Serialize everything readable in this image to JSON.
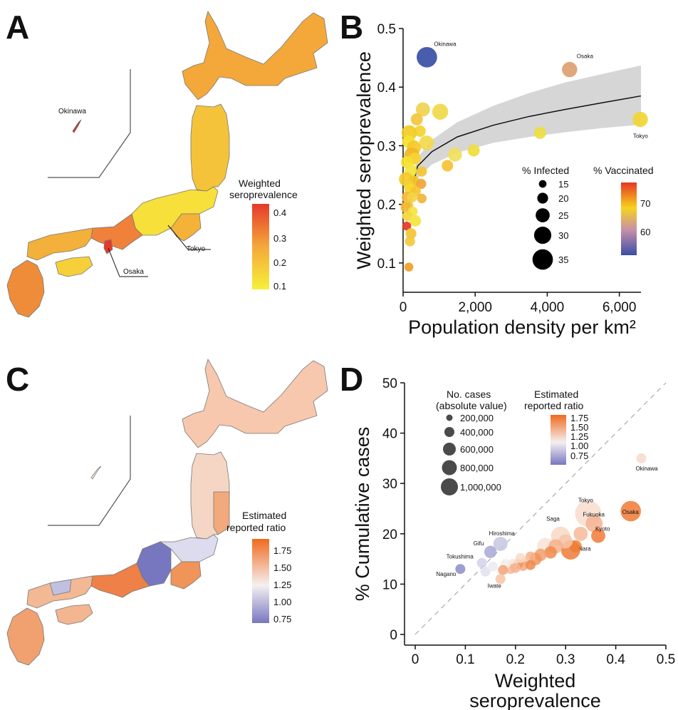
{
  "panels": {
    "a": "A",
    "b": "B",
    "c": "C",
    "d": "D"
  },
  "map_a": {
    "legend_title_1": "Weighted",
    "legend_title_2": "seroprevalence",
    "legend_ticks": [
      "0.4",
      "0.3",
      "0.2",
      "0.1"
    ],
    "labels": {
      "okinawa": "Okinawa",
      "tokyo": "Tokyo",
      "osaka": "Osaka"
    },
    "colors": {
      "low": "#f7f03a",
      "mid": "#f4a83a",
      "high": "#e53a2a"
    }
  },
  "map_c": {
    "legend_title_1": "Estimated",
    "legend_title_2": "reported ratio",
    "legend_ticks": [
      "1.75",
      "1.50",
      "1.25",
      "1.00",
      "0.75"
    ],
    "colors": {
      "low": "#7777c0",
      "mid": "#f5f0f0",
      "high": "#f06a1f"
    }
  },
  "chart_data": [
    {
      "type": "scatter",
      "xlabel": "Population density per km²",
      "ylabel": "Weighted seroprevalence",
      "xlim": [
        0,
        6600
      ],
      "ylim": [
        0.05,
        0.5
      ],
      "x_ticks": [
        "0",
        "2,000",
        "4,000",
        "6,000"
      ],
      "y_ticks": [
        "0.1",
        "0.2",
        "0.3",
        "0.4",
        "0.5"
      ],
      "size_legend": {
        "title": "% Infected",
        "labels": [
          "15",
          "20",
          "25",
          "30",
          "35"
        ]
      },
      "color_legend": {
        "title": "% Vaccinated",
        "labels": [
          "70",
          "60"
        ],
        "colors": [
          "#e63624",
          "#f7d21e",
          "#c890a8",
          "#3a4fa6"
        ]
      },
      "fit": {
        "x": [
          100,
          400,
          800,
          1500,
          2500,
          3500,
          4500,
          5500,
          6600
        ],
        "y": [
          0.185,
          0.265,
          0.29,
          0.315,
          0.335,
          0.35,
          0.362,
          0.373,
          0.385
        ]
      },
      "band": {
        "x": [
          100,
          400,
          800,
          1500,
          2500,
          3500,
          4500,
          5500,
          6600
        ],
        "lower": [
          0.17,
          0.245,
          0.268,
          0.288,
          0.305,
          0.315,
          0.323,
          0.33,
          0.336
        ],
        "upper": [
          0.2,
          0.28,
          0.31,
          0.34,
          0.368,
          0.39,
          0.408,
          0.422,
          0.437
        ]
      },
      "points": [
        {
          "x": 660,
          "y": 0.451,
          "s": 35,
          "c": "#3a4fa6",
          "label": "Okinawa"
        },
        {
          "x": 4620,
          "y": 0.43,
          "s": 27,
          "c": "#dda070",
          "label": "Osaka"
        },
        {
          "x": 6580,
          "y": 0.345,
          "s": 27,
          "c": "#f2d535",
          "label": "Tokyo"
        },
        {
          "x": 3800,
          "y": 0.322,
          "s": 22,
          "c": "#ece040"
        },
        {
          "x": 1030,
          "y": 0.358,
          "s": 28,
          "c": "#f0d94a"
        },
        {
          "x": 1440,
          "y": 0.285,
          "s": 25,
          "c": "#f0e060"
        },
        {
          "x": 1960,
          "y": 0.292,
          "s": 22,
          "c": "#f0dd3e"
        },
        {
          "x": 1230,
          "y": 0.266,
          "s": 21,
          "c": "#f5c232"
        },
        {
          "x": 650,
          "y": 0.305,
          "s": 26,
          "c": "#f3d84c"
        },
        {
          "x": 550,
          "y": 0.362,
          "s": 25,
          "c": "#efd34e"
        },
        {
          "x": 380,
          "y": 0.345,
          "s": 22,
          "c": "#f2c63d"
        },
        {
          "x": 470,
          "y": 0.325,
          "s": 21,
          "c": "#f3d231"
        },
        {
          "x": 170,
          "y": 0.322,
          "s": 27,
          "c": "#f1cc25"
        },
        {
          "x": 150,
          "y": 0.307,
          "s": 23,
          "c": "#f7e12f"
        },
        {
          "x": 300,
          "y": 0.297,
          "s": 25,
          "c": "#f5c92a"
        },
        {
          "x": 240,
          "y": 0.284,
          "s": 27,
          "c": "#f2b726"
        },
        {
          "x": 330,
          "y": 0.278,
          "s": 22,
          "c": "#f7d434"
        },
        {
          "x": 110,
          "y": 0.272,
          "s": 22,
          "c": "#f5df2c"
        },
        {
          "x": 220,
          "y": 0.258,
          "s": 22,
          "c": "#f4e53a"
        },
        {
          "x": 520,
          "y": 0.256,
          "s": 19,
          "c": "#f2c436"
        },
        {
          "x": 80,
          "y": 0.243,
          "s": 25,
          "c": "#f4ca27"
        },
        {
          "x": 290,
          "y": 0.239,
          "s": 22,
          "c": "#f5c424"
        },
        {
          "x": 160,
          "y": 0.232,
          "s": 20,
          "c": "#f3d03a"
        },
        {
          "x": 500,
          "y": 0.235,
          "s": 19,
          "c": "#f0a536"
        },
        {
          "x": 200,
          "y": 0.225,
          "s": 21,
          "c": "#f6d82f"
        },
        {
          "x": 350,
          "y": 0.222,
          "s": 19,
          "c": "#f5c430"
        },
        {
          "x": 120,
          "y": 0.212,
          "s": 21,
          "c": "#f5b834"
        },
        {
          "x": 250,
          "y": 0.212,
          "s": 19,
          "c": "#f5d246"
        },
        {
          "x": 520,
          "y": 0.21,
          "s": 18,
          "c": "#f1b43a"
        },
        {
          "x": 140,
          "y": 0.198,
          "s": 19,
          "c": "#f4c93a"
        },
        {
          "x": 80,
          "y": 0.195,
          "s": 20,
          "c": "#f3b93a"
        },
        {
          "x": 270,
          "y": 0.188,
          "s": 18,
          "c": "#f4e444"
        },
        {
          "x": 120,
          "y": 0.18,
          "s": 19,
          "c": "#f5d73c"
        },
        {
          "x": 340,
          "y": 0.172,
          "s": 21,
          "c": "#f5e43e"
        },
        {
          "x": 100,
          "y": 0.163,
          "s": 17,
          "c": "#e63624"
        },
        {
          "x": 220,
          "y": 0.15,
          "s": 20,
          "c": "#f2c532"
        },
        {
          "x": 190,
          "y": 0.137,
          "s": 19,
          "c": "#f4c83f"
        },
        {
          "x": 160,
          "y": 0.093,
          "s": 17,
          "c": "#f0a026"
        }
      ]
    },
    {
      "type": "scatter",
      "xlabel_1": "Weighted",
      "xlabel_2": "seroprevalence",
      "ylabel": "% Cumulative cases",
      "xlim": [
        0,
        0.5
      ],
      "ylim": [
        0,
        50
      ],
      "x_ticks": [
        "0",
        "0.1",
        "0.2",
        "0.3",
        "0.4",
        "0.5"
      ],
      "y_ticks": [
        "0",
        "10",
        "20",
        "30",
        "40",
        "50"
      ],
      "size_legend": {
        "title_1": "No. cases",
        "title_2": "(absolute value)",
        "labels": [
          "200,000",
          "400,000",
          "600,000",
          "800,000",
          "1,000,000"
        ]
      },
      "color_legend": {
        "title_1": "Estimated",
        "title_2": "reported ratio",
        "labels": [
          "1.75",
          "1.50",
          "1.25",
          "1.00",
          "0.75"
        ],
        "colors": [
          "#f06a1f",
          "#f3a77d",
          "#f5f0f0",
          "#b4b4dc",
          "#7777c0"
        ]
      },
      "points": [
        {
          "x": 0.451,
          "y": 35,
          "s": 1,
          "c": "#f6d9cc",
          "label": "Okinawa"
        },
        {
          "x": 0.43,
          "y": 24.5,
          "s": 8,
          "c": "#f07a34",
          "label": "Osaka"
        },
        {
          "x": 0.345,
          "y": 24,
          "s": 15,
          "c": "#f8dccf",
          "label": "Tokyo"
        },
        {
          "x": 0.357,
          "y": 22,
          "s": 5,
          "c": "#f4b290",
          "label": "Fukuoka"
        },
        {
          "x": 0.365,
          "y": 19.6,
          "s": 3,
          "c": "#f07a38",
          "label": "Kyoto"
        },
        {
          "x": 0.32,
          "y": 17.5,
          "s": 2,
          "c": "#ed8440",
          "label": "Nara"
        },
        {
          "x": 0.29,
          "y": 19.5,
          "s": 7,
          "c": "#f8d8c6",
          "label": "Saga"
        },
        {
          "x": 0.31,
          "y": 16.8,
          "s": 7,
          "c": "#ef7c36"
        },
        {
          "x": 0.33,
          "y": 20,
          "s": 3,
          "c": "#f7b898"
        },
        {
          "x": 0.3,
          "y": 18.5,
          "s": 3,
          "c": "#f6c6aa"
        },
        {
          "x": 0.26,
          "y": 17.5,
          "s": 5,
          "c": "#f8e2d6"
        },
        {
          "x": 0.28,
          "y": 17.5,
          "s": 3,
          "c": "#f4b08a"
        },
        {
          "x": 0.27,
          "y": 16.3,
          "s": 2,
          "c": "#ef8a4c"
        },
        {
          "x": 0.25,
          "y": 15.8,
          "s": 2,
          "c": "#f2a070"
        },
        {
          "x": 0.24,
          "y": 15,
          "s": 2,
          "c": "#f1955c"
        },
        {
          "x": 0.23,
          "y": 15.5,
          "s": 1,
          "c": "#f3b08a"
        },
        {
          "x": 0.22,
          "y": 14.5,
          "s": 1,
          "c": "#f6c2a4"
        },
        {
          "x": 0.215,
          "y": 13.6,
          "s": 1,
          "c": "#f3aa80"
        },
        {
          "x": 0.205,
          "y": 14,
          "s": 1,
          "c": "#f0945c"
        },
        {
          "x": 0.195,
          "y": 14,
          "s": 1,
          "c": "#f8e4d8"
        },
        {
          "x": 0.19,
          "y": 13,
          "s": 1,
          "c": "#f4ba98"
        },
        {
          "x": 0.18,
          "y": 14,
          "s": 1,
          "c": "#f5ede8"
        },
        {
          "x": 0.175,
          "y": 12.8,
          "s": 1,
          "c": "#f2a57a"
        },
        {
          "x": 0.2,
          "y": 13.2,
          "s": 1,
          "c": "#f3b290"
        },
        {
          "x": 0.23,
          "y": 13.8,
          "s": 1,
          "c": "#ef8850"
        },
        {
          "x": 0.21,
          "y": 15.2,
          "s": 1,
          "c": "#f8dac8"
        },
        {
          "x": 0.17,
          "y": 18,
          "s": 3,
          "c": "#c5c5e2",
          "label": "Hiroshima"
        },
        {
          "x": 0.15,
          "y": 16.4,
          "s": 2,
          "c": "#a8a8d6",
          "label": "Gifu"
        },
        {
          "x": 0.133,
          "y": 14.2,
          "s": 1,
          "c": "#d2d2ea",
          "label": "Tokushima"
        },
        {
          "x": 0.09,
          "y": 13,
          "s": 1,
          "c": "#8c8cc8",
          "label": "Nagano"
        },
        {
          "x": 0.14,
          "y": 12.5,
          "s": 1,
          "c": "#e0e0f0"
        },
        {
          "x": 0.155,
          "y": 13.5,
          "s": 1,
          "c": "#eceaf2"
        },
        {
          "x": 0.17,
          "y": 11,
          "s": 1,
          "c": "#f7c2a4",
          "label": "Iwate"
        }
      ]
    }
  ]
}
